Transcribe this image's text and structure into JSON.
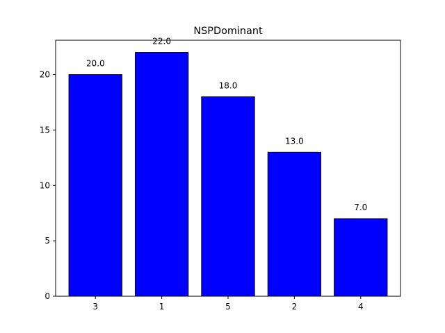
{
  "chart_data": {
    "type": "bar",
    "title": "NSPDominant",
    "xlabel": "",
    "ylabel": "",
    "categories": [
      "3",
      "1",
      "5",
      "2",
      "4"
    ],
    "values": [
      20,
      22,
      18,
      13,
      7
    ],
    "data_labels": [
      "20.0",
      "22.0",
      "18.0",
      "13.0",
      "7.0"
    ],
    "y_ticks": [
      0,
      5,
      10,
      15,
      20
    ],
    "ylim": [
      0,
      23.1
    ],
    "grid": false,
    "legend": "none",
    "colors": {
      "bar_fill": "#0000ff",
      "bar_edge": "#000000",
      "axis": "#000000"
    }
  }
}
